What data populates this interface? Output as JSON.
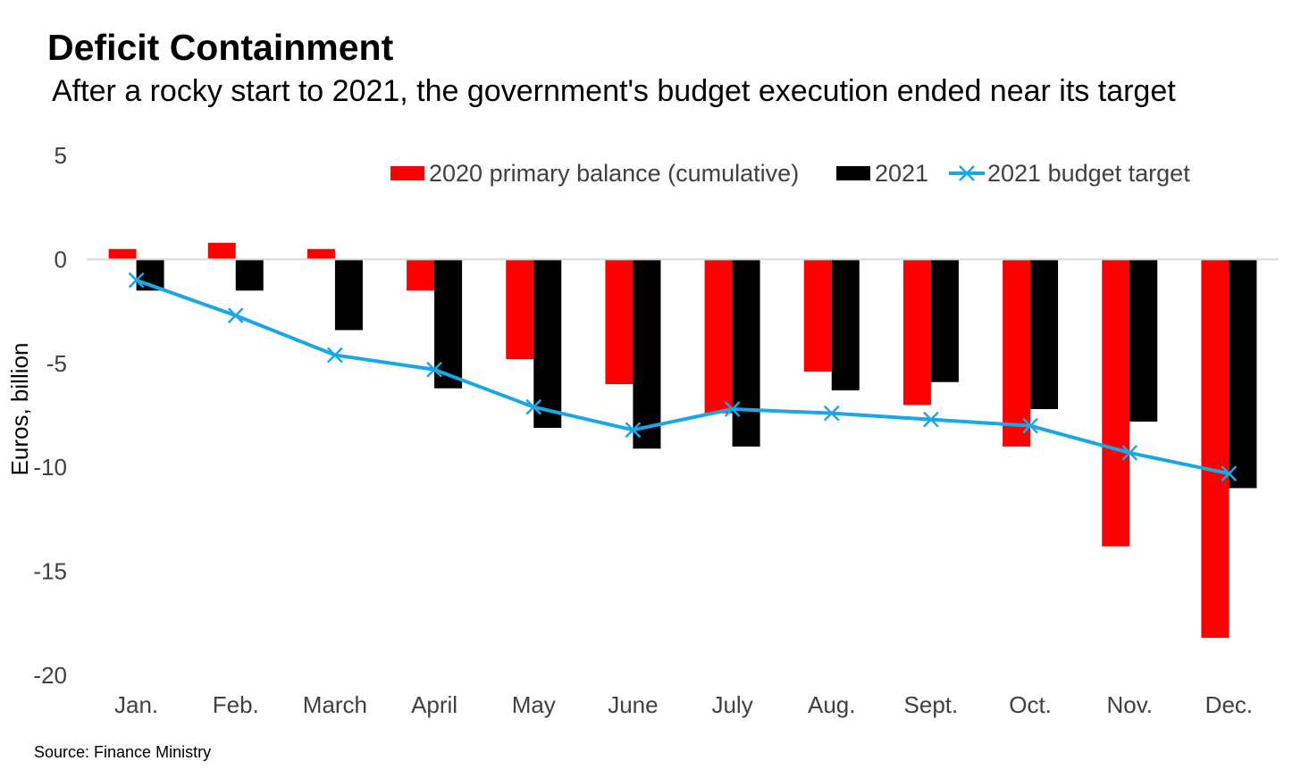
{
  "title": "Deficit Containment",
  "subtitle": "After a rocky start to 2021, the government's budget execution ended near its target",
  "source": "Source: Finance Ministry",
  "colors": {
    "s2020": "#ff0000",
    "s2021": "#000000",
    "target": "#1aa7e8",
    "zero_line": "#d9d9d9"
  },
  "chart_data": {
    "type": "bar",
    "categories": [
      "Jan.",
      "Feb.",
      "March",
      "April",
      "May",
      "June",
      "July",
      "Aug.",
      "Sept.",
      "Oct.",
      "Nov.",
      "Dec."
    ],
    "series": [
      {
        "name": "2020 primary balance (cumulative)",
        "type": "bar",
        "values": [
          0.5,
          0.8,
          0.5,
          -1.5,
          -4.8,
          -6.0,
          -7.4,
          -5.4,
          -7.0,
          -9.0,
          -13.8,
          -18.2
        ]
      },
      {
        "name": "2021",
        "type": "bar",
        "values": [
          -1.5,
          -1.5,
          -3.4,
          -6.2,
          -8.1,
          -9.1,
          -9.0,
          -6.3,
          -5.9,
          -7.2,
          -7.8,
          -11.0
        ]
      },
      {
        "name": "2021 budget target",
        "type": "line",
        "marker": "x",
        "values": [
          -1.0,
          -2.7,
          -4.6,
          -5.3,
          -7.1,
          -8.2,
          -7.2,
          -7.4,
          -7.7,
          -8.0,
          -9.3,
          -10.3
        ]
      }
    ],
    "ylabel": "Euros, billion",
    "xlabel": "",
    "ylim": [
      -20,
      5
    ],
    "yticks": [
      5,
      0,
      -5,
      -10,
      -15,
      -20
    ],
    "legend_position": "top",
    "grid": false
  }
}
